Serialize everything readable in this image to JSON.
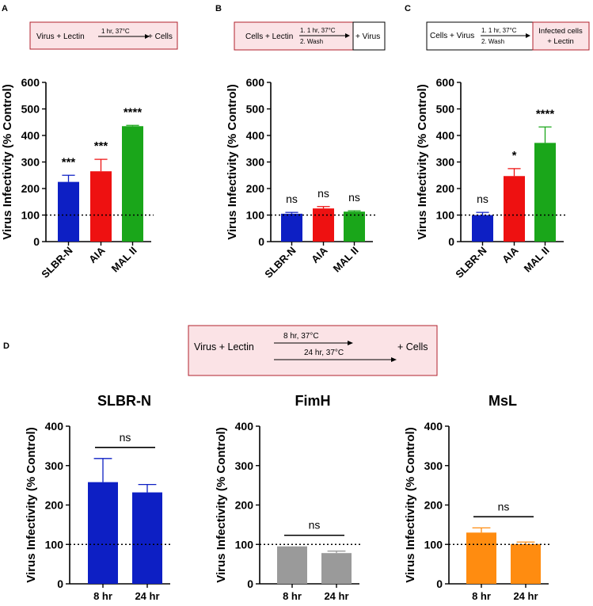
{
  "colors": {
    "blue": "#0d1fc4",
    "red": "#ee1111",
    "green": "#1aa61a",
    "gray": "#9a9a9a",
    "orange": "#ff8c10",
    "pink_box": "#fbe3e6",
    "pink_border": "#b0202c"
  },
  "panels": {
    "A": {
      "letter": "A",
      "schematic": {
        "text1": "Virus + Lectin",
        "step": "1 hr, 37°C",
        "text2": "+ Cells"
      }
    },
    "B": {
      "letter": "B",
      "schematic": {
        "text1": "Cells + Lectin",
        "step1": "1.   1 hr, 37°C",
        "step2": "2.  Wash",
        "text2": "+ Virus"
      }
    },
    "C": {
      "letter": "C",
      "schematic": {
        "text1": "Cells + Virus",
        "step1": "1.   1 hr, 37°C",
        "step2": "2.  Wash",
        "text2a": "Infected cells",
        "text2b": "+ Lectin"
      }
    },
    "D": {
      "letter": "D",
      "schematic": {
        "text1": "Virus + Lectin",
        "step1": "8 hr, 37°C",
        "step2": "24 hr, 37°C",
        "text2": "+ Cells"
      }
    }
  },
  "chart_data": [
    {
      "id": "A",
      "type": "bar",
      "title": "",
      "xlabel": "",
      "ylabel": "Virus Infectivity (% Control)",
      "ylim": [
        0,
        600
      ],
      "yticks": [
        0,
        100,
        200,
        300,
        400,
        500,
        600
      ],
      "reference_line": 100,
      "categories": [
        "SLBR-N",
        "AIA",
        "MAL II"
      ],
      "values": [
        225,
        265,
        435
      ],
      "errors": [
        25,
        45,
        3
      ],
      "significance": [
        "***",
        "***",
        "****"
      ],
      "colors": [
        "#0d1fc4",
        "#ee1111",
        "#1aa61a"
      ]
    },
    {
      "id": "B",
      "type": "bar",
      "title": "",
      "xlabel": "",
      "ylabel": "Virus Infectivity (% Control)",
      "ylim": [
        0,
        600
      ],
      "yticks": [
        0,
        100,
        200,
        300,
        400,
        500,
        600
      ],
      "reference_line": 100,
      "categories": [
        "SLBR-N",
        "AIA",
        "MAL II"
      ],
      "values": [
        105,
        125,
        113
      ],
      "errors": [
        5,
        7,
        3
      ],
      "significance": [
        "ns",
        "ns",
        "ns"
      ],
      "colors": [
        "#0d1fc4",
        "#ee1111",
        "#1aa61a"
      ]
    },
    {
      "id": "C",
      "type": "bar",
      "title": "",
      "xlabel": "",
      "ylabel": "Virus Infectivity (% Control)",
      "ylim": [
        0,
        600
      ],
      "yticks": [
        0,
        100,
        200,
        300,
        400,
        500,
        600
      ],
      "reference_line": 100,
      "categories": [
        "SLBR-N",
        "AIA",
        "MAL II"
      ],
      "values": [
        100,
        247,
        372
      ],
      "errors": [
        10,
        28,
        60
      ],
      "significance": [
        "ns",
        "*",
        "****"
      ],
      "colors": [
        "#0d1fc4",
        "#ee1111",
        "#1aa61a"
      ]
    },
    {
      "id": "D1",
      "type": "bar",
      "title": "SLBR-N",
      "xlabel": "",
      "ylabel": "Virus Infectivity (% Control)",
      "ylim": [
        0,
        400
      ],
      "yticks": [
        0,
        100,
        200,
        300,
        400
      ],
      "reference_line": 100,
      "categories": [
        "8 hr",
        "24 hr"
      ],
      "values": [
        258,
        232
      ],
      "errors": [
        60,
        20
      ],
      "comparison": "ns",
      "colors": [
        "#0d1fc4",
        "#0d1fc4"
      ]
    },
    {
      "id": "D2",
      "type": "bar",
      "title": "FimH",
      "xlabel": "",
      "ylabel": "Virus Infectivity (% Control)",
      "ylim": [
        0,
        400
      ],
      "yticks": [
        0,
        100,
        200,
        300,
        400
      ],
      "reference_line": 100,
      "categories": [
        "8 hr",
        "24 hr"
      ],
      "values": [
        95,
        78
      ],
      "errors": [
        0,
        5
      ],
      "comparison": "ns",
      "colors": [
        "#9a9a9a",
        "#9a9a9a"
      ]
    },
    {
      "id": "D3",
      "type": "bar",
      "title": "MsL",
      "xlabel": "",
      "ylabel": "Virus Infectivity (% Control)",
      "ylim": [
        0,
        400
      ],
      "yticks": [
        0,
        100,
        200,
        300,
        400
      ],
      "reference_line": 100,
      "categories": [
        "8 hr",
        "24 hr"
      ],
      "values": [
        130,
        101
      ],
      "errors": [
        12,
        5
      ],
      "comparison": "ns",
      "colors": [
        "#ff8c10",
        "#ff8c10"
      ]
    }
  ]
}
